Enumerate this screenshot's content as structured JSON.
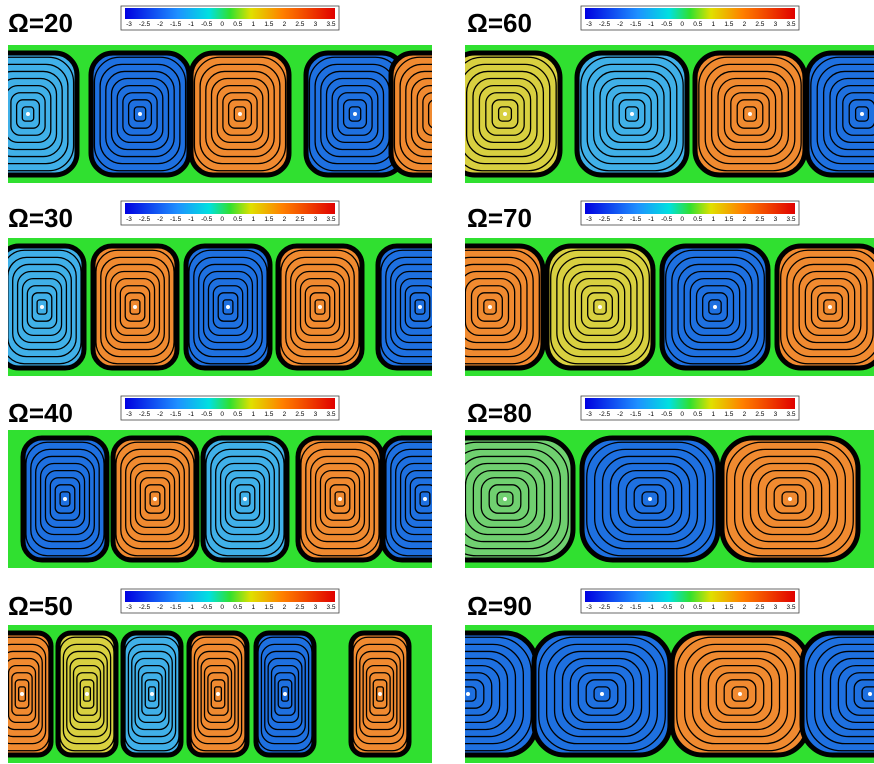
{
  "panels": [
    {
      "label": "Ω=20",
      "colorbar": [
        -3,
        -2.5,
        -2,
        -1.5,
        -1,
        -0.5,
        0,
        0.5,
        1,
        1.5,
        2,
        2.5,
        3,
        3.5
      ]
    },
    {
      "label": "Ω=60",
      "colorbar": [
        -3,
        -2.5,
        -2,
        -1.5,
        -1,
        -0.5,
        0,
        0.5,
        1,
        1.5,
        2,
        2.5,
        3,
        3.5
      ]
    },
    {
      "label": "Ω=30",
      "colorbar": [
        -3,
        -2.5,
        -2,
        -1.5,
        -1,
        -0.5,
        0,
        0.5,
        1,
        1.5,
        2,
        2.5,
        3,
        3.5
      ]
    },
    {
      "label": "Ω=70",
      "colorbar": [
        -3,
        -2.5,
        -2,
        -1.5,
        -1,
        -0.5,
        0,
        0.5,
        1,
        1.5,
        2,
        2.5,
        3,
        3.5
      ]
    },
    {
      "label": "Ω=40",
      "colorbar": [
        -3,
        -2.5,
        -2,
        -1.5,
        -1,
        -0.5,
        0,
        0.5,
        1,
        1.5,
        2,
        2.5,
        3,
        3.5
      ]
    },
    {
      "label": "Ω=80",
      "colorbar": [
        -3,
        -2.5,
        -2,
        -1.5,
        -1,
        -0.5,
        0,
        0.5,
        1,
        1.5,
        2,
        2.5,
        3,
        3.5
      ]
    },
    {
      "label": "Ω=50",
      "colorbar": [
        -3,
        -2.5,
        -2,
        -1.5,
        -1,
        -0.5,
        0,
        0.5,
        1,
        1.5,
        2,
        2.5,
        3,
        3.5
      ]
    },
    {
      "label": "Ω=90",
      "colorbar": [
        -3,
        -2.5,
        -2,
        -1.5,
        -1,
        -0.5,
        0,
        0.5,
        1,
        1.5,
        2,
        2.5,
        3,
        3.5
      ]
    }
  ]
}
